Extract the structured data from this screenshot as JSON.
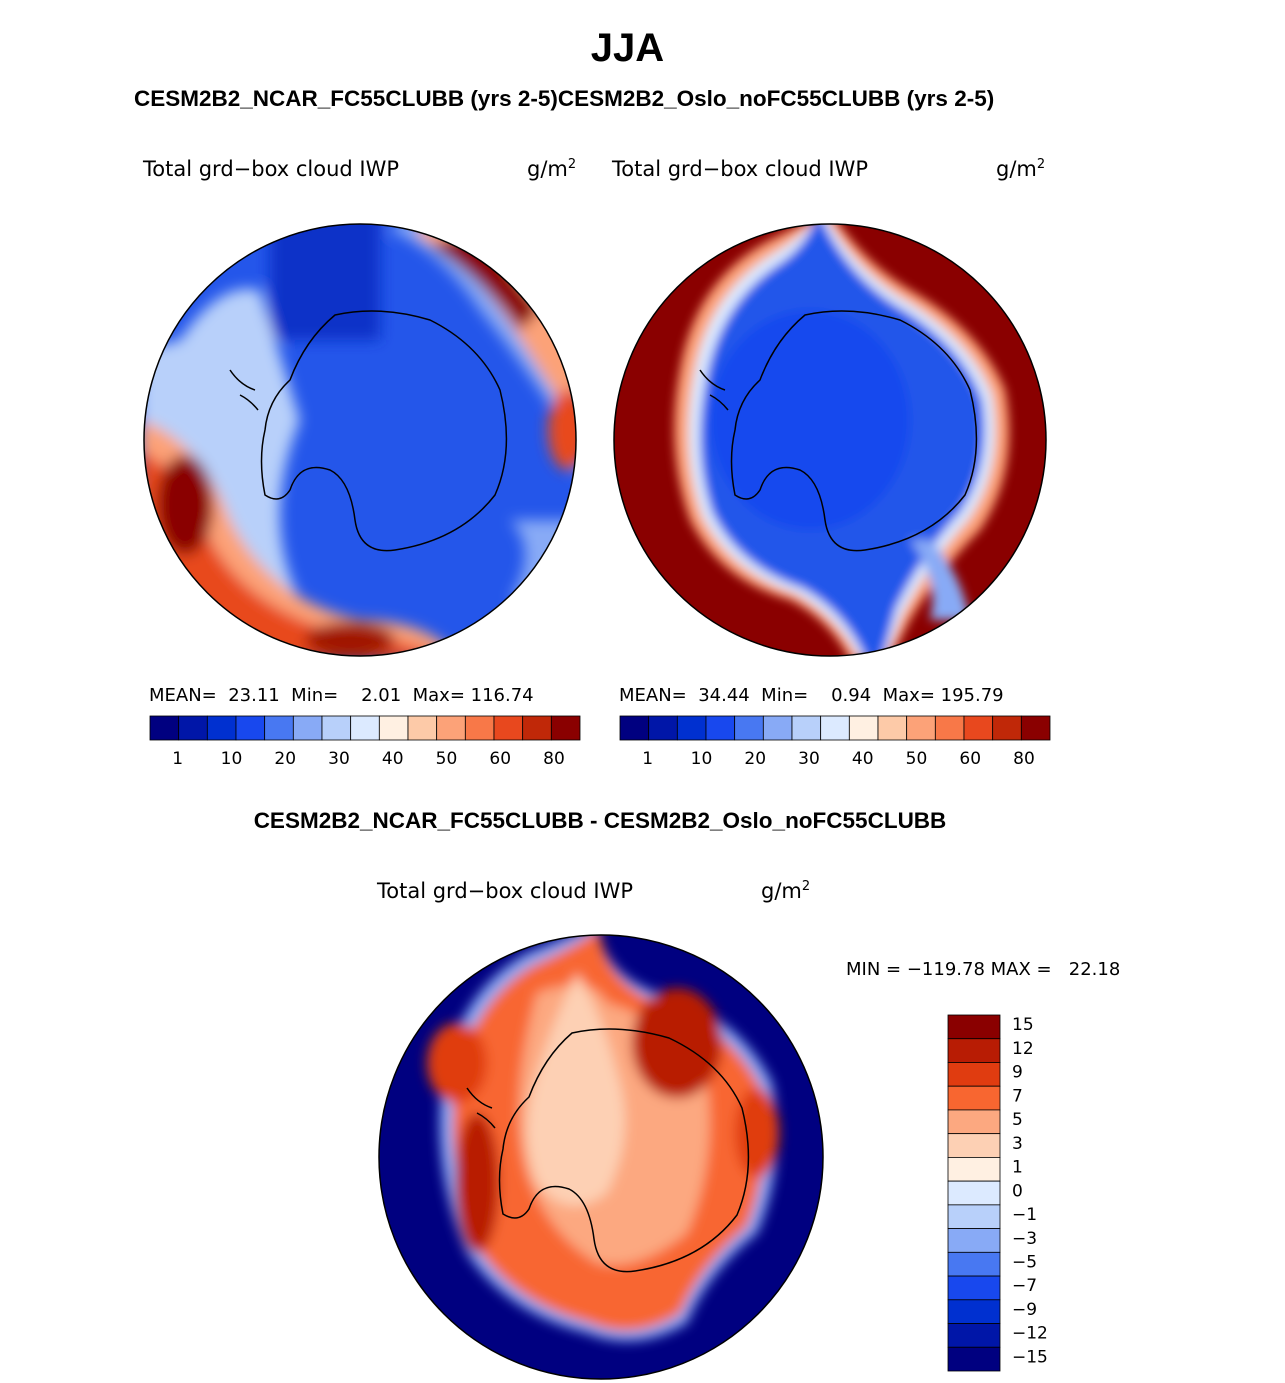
{
  "figure": {
    "season": "JJA",
    "subtitle": "CESM2B2_NCAR_FC55CLUBB (yrs 2-5)CESM2B2_Oslo_noFC55CLUBB (yrs 2-5)",
    "diff_title": "CESM2B2_NCAR_FC55CLUBB - CESM2B2_Oslo_noFC55CLUBB"
  },
  "panels": [
    {
      "id": "ncar",
      "variable": "Total grd−box cloud IWP",
      "units_base": "g/m",
      "units_exp": "2",
      "stats_text": "MEAN=  23.11  Min=    2.01  Max= 116.74"
    },
    {
      "id": "oslo",
      "variable": "Total grd−box cloud IWP",
      "units_base": "g/m",
      "units_exp": "2",
      "stats_text": "MEAN=  34.44  Min=    0.94  Max= 195.79"
    },
    {
      "id": "diff",
      "variable": "Total grd−box cloud IWP",
      "units_base": "g/m",
      "units_exp": "2",
      "minmax_text": "MIN = −119.78 MAX =   22.18"
    }
  ],
  "colorbars": {
    "abs": {
      "colors": [
        "#000080",
        "#0016a8",
        "#0030d0",
        "#1848ee",
        "#4878f2",
        "#88aaf6",
        "#b8d0fa",
        "#dceaff",
        "#fff0e2",
        "#fdcaa8",
        "#fca278",
        "#f87848",
        "#e8481e",
        "#c02808",
        "#8a0000"
      ],
      "labels": [
        "1",
        "10",
        "20",
        "30",
        "40",
        "50",
        "60",
        "80"
      ]
    },
    "diff": {
      "colors": [
        "#8a0000",
        "#b81c04",
        "#e03c10",
        "#f86630",
        "#fca880",
        "#fdd0b4",
        "#fff0e2",
        "#dceaff",
        "#b8d0fa",
        "#88aaf6",
        "#4878f2",
        "#1848ee",
        "#0030d0",
        "#0016a8",
        "#000080"
      ],
      "labels": [
        "15",
        "12",
        "9",
        "7",
        "5",
        "3",
        "1",
        "0",
        "−1",
        "−3",
        "−5",
        "−7",
        "−9",
        "−12",
        "−15"
      ]
    }
  }
}
